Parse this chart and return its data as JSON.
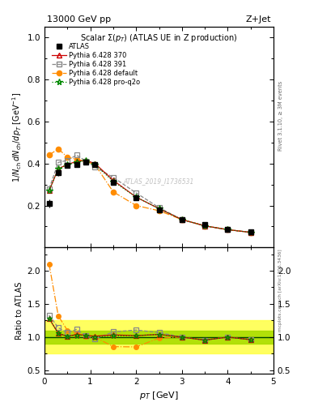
{
  "title_top_left": "13000 GeV pp",
  "title_top_right": "Z+Jet",
  "main_title": "Scalar Σ(p_T) (ATLAS UE in Z production)",
  "ylabel_main": "1/N_{ch} dN_{ch}/dp_T [GeV⁻¹]",
  "ylabel_ratio": "Ratio to ATLAS",
  "xlabel": "p_T [GeV]",
  "watermark": "ATLAS_2019_I1736531",
  "rivet_label": "Rivet 3.1.10, ≥ 3M events",
  "arxiv_label": "mcplots.cern.ch [arXiv:1306.3436]",
  "atlas_x": [
    0.1,
    0.3,
    0.5,
    0.7,
    0.9,
    1.1,
    1.5,
    2.0,
    2.5,
    3.0,
    3.5,
    4.0,
    4.5
  ],
  "atlas_y": [
    0.21,
    0.355,
    0.39,
    0.395,
    0.405,
    0.395,
    0.31,
    0.235,
    0.178,
    0.133,
    0.108,
    0.085,
    0.075
  ],
  "atlas_err": [
    0.02,
    0.015,
    0.012,
    0.01,
    0.01,
    0.01,
    0.009,
    0.008,
    0.006,
    0.005,
    0.004,
    0.003,
    0.003
  ],
  "p370_x": [
    0.1,
    0.3,
    0.5,
    0.7,
    0.9,
    1.1,
    1.5,
    2.0,
    2.5,
    3.0,
    3.5,
    4.0,
    4.5
  ],
  "p370_y": [
    0.27,
    0.375,
    0.395,
    0.41,
    0.415,
    0.4,
    0.32,
    0.24,
    0.185,
    0.133,
    0.103,
    0.085,
    0.072
  ],
  "p391_x": [
    0.1,
    0.3,
    0.5,
    0.7,
    0.9,
    1.1,
    1.5,
    2.0,
    2.5,
    3.0,
    3.5,
    4.0,
    4.5
  ],
  "p391_y": [
    0.28,
    0.405,
    0.415,
    0.44,
    0.412,
    0.384,
    0.334,
    0.26,
    0.19,
    0.133,
    0.103,
    0.085,
    0.072
  ],
  "pdef_x": [
    0.1,
    0.3,
    0.5,
    0.7,
    0.9,
    1.1,
    1.5,
    2.0,
    2.5,
    3.0,
    3.5,
    4.0,
    4.5
  ],
  "pdef_y": [
    0.44,
    0.47,
    0.43,
    0.42,
    0.41,
    0.395,
    0.265,
    0.2,
    0.175,
    0.133,
    0.103,
    0.085,
    0.072
  ],
  "pq2o_x": [
    0.1,
    0.3,
    0.5,
    0.7,
    0.9,
    1.1,
    1.5,
    2.0,
    2.5,
    3.0,
    3.5,
    4.0,
    4.5
  ],
  "pq2o_y": [
    0.27,
    0.375,
    0.395,
    0.405,
    0.415,
    0.395,
    0.315,
    0.24,
    0.185,
    0.133,
    0.103,
    0.085,
    0.072
  ],
  "ratio_p370": [
    1.28,
    1.055,
    1.01,
    1.04,
    1.025,
    1.013,
    1.032,
    1.021,
    1.039,
    1.0,
    0.953,
    1.0,
    0.96
  ],
  "ratio_p391": [
    1.33,
    1.14,
    1.065,
    1.115,
    1.018,
    0.972,
    1.077,
    1.106,
    1.067,
    1.0,
    0.953,
    1.0,
    0.96
  ],
  "ratio_pdef": [
    2.1,
    1.32,
    1.1,
    1.063,
    1.012,
    1.0,
    0.855,
    0.851,
    0.983,
    1.0,
    0.954,
    1.0,
    0.96
  ],
  "ratio_pq2o": [
    1.28,
    1.055,
    1.013,
    1.025,
    1.025,
    1.0,
    1.016,
    1.021,
    1.039,
    1.0,
    0.954,
    1.0,
    0.96
  ],
  "color_atlas": "#000000",
  "color_p370": "#cc0000",
  "color_p391": "#888888",
  "color_pdef": "#ff8c00",
  "color_pq2o": "#008800",
  "color_yellow": "#ffff44",
  "color_green": "#aadd00",
  "ylim_main": [
    0.0,
    1.05
  ],
  "ylim_ratio": [
    0.45,
    2.35
  ],
  "xlim": [
    0.0,
    5.0
  ],
  "yticks_main": [
    0.2,
    0.4,
    0.6,
    0.8,
    1.0
  ],
  "yticks_ratio": [
    0.5,
    1.0,
    1.5,
    2.0
  ],
  "xticks": [
    0,
    1,
    2,
    3,
    4,
    5
  ]
}
